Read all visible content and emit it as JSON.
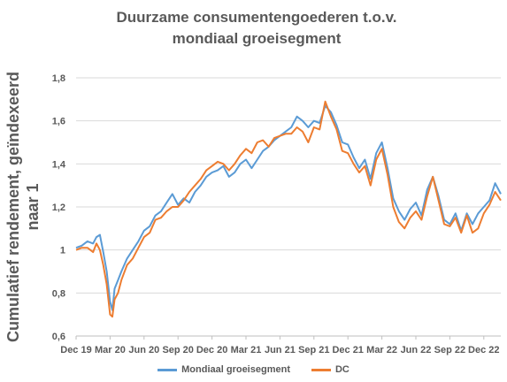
{
  "chart_data": {
    "type": "line",
    "title_line1": "Duurzame consumentengoederen t.o.v.",
    "title_line2": "mondiaal groeisegment",
    "ylabel": "Cumulatief rendement, geïndexeerd naar 1",
    "xlabel": "",
    "ylim": [
      0.6,
      1.8
    ],
    "y_ticks": [
      "0,6",
      "0,8",
      "1",
      "1,2",
      "1,4",
      "1,6",
      "1,8"
    ],
    "x_ticks": [
      "Dec 19",
      "Mar 20",
      "Jun 20",
      "Sep 20",
      "Dec 20",
      "Mar 21",
      "Jun 21",
      "Sep 21",
      "Dec 21",
      "Mar 22",
      "Jun 22",
      "Sep 22",
      "Dec 22"
    ],
    "x_range_months": [
      0,
      37.5
    ],
    "legend_position": "bottom",
    "grid": "horizontal",
    "series": [
      {
        "name": "Mondiaal groeisegment",
        "color": "#5B9BD5",
        "points": [
          [
            0,
            1.01
          ],
          [
            0.5,
            1.02
          ],
          [
            1,
            1.04
          ],
          [
            1.5,
            1.03
          ],
          [
            1.8,
            1.06
          ],
          [
            2.1,
            1.07
          ],
          [
            2.4,
            0.99
          ],
          [
            2.7,
            0.9
          ],
          [
            3.0,
            0.76
          ],
          [
            3.2,
            0.72
          ],
          [
            3.4,
            0.82
          ],
          [
            3.7,
            0.86
          ],
          [
            4.0,
            0.9
          ],
          [
            4.5,
            0.96
          ],
          [
            5,
            1.0
          ],
          [
            5.5,
            1.04
          ],
          [
            6,
            1.09
          ],
          [
            6.5,
            1.11
          ],
          [
            7,
            1.16
          ],
          [
            7.5,
            1.18
          ],
          [
            8,
            1.22
          ],
          [
            8.5,
            1.26
          ],
          [
            9,
            1.21
          ],
          [
            9.5,
            1.24
          ],
          [
            10,
            1.22
          ],
          [
            10.5,
            1.27
          ],
          [
            11,
            1.3
          ],
          [
            11.5,
            1.34
          ],
          [
            12,
            1.36
          ],
          [
            12.5,
            1.37
          ],
          [
            13,
            1.39
          ],
          [
            13.5,
            1.34
          ],
          [
            14,
            1.36
          ],
          [
            14.5,
            1.4
          ],
          [
            15,
            1.42
          ],
          [
            15.5,
            1.38
          ],
          [
            16,
            1.42
          ],
          [
            16.5,
            1.46
          ],
          [
            17,
            1.48
          ],
          [
            17.5,
            1.51
          ],
          [
            18,
            1.53
          ],
          [
            18.5,
            1.55
          ],
          [
            19,
            1.57
          ],
          [
            19.5,
            1.62
          ],
          [
            20,
            1.6
          ],
          [
            20.5,
            1.57
          ],
          [
            21,
            1.6
          ],
          [
            21.5,
            1.59
          ],
          [
            22,
            1.67
          ],
          [
            22.5,
            1.64
          ],
          [
            23,
            1.58
          ],
          [
            23.5,
            1.5
          ],
          [
            24,
            1.49
          ],
          [
            24.5,
            1.43
          ],
          [
            25,
            1.38
          ],
          [
            25.5,
            1.42
          ],
          [
            26,
            1.33
          ],
          [
            26.5,
            1.45
          ],
          [
            27,
            1.5
          ],
          [
            27.5,
            1.38
          ],
          [
            28,
            1.24
          ],
          [
            28.5,
            1.18
          ],
          [
            29,
            1.14
          ],
          [
            29.5,
            1.19
          ],
          [
            30,
            1.22
          ],
          [
            30.5,
            1.16
          ],
          [
            31,
            1.28
          ],
          [
            31.5,
            1.34
          ],
          [
            32,
            1.25
          ],
          [
            32.5,
            1.14
          ],
          [
            33,
            1.12
          ],
          [
            33.5,
            1.17
          ],
          [
            34,
            1.09
          ],
          [
            34.5,
            1.17
          ],
          [
            35,
            1.12
          ],
          [
            35.5,
            1.17
          ],
          [
            36,
            1.2
          ],
          [
            36.5,
            1.23
          ],
          [
            37,
            1.31
          ],
          [
            37.5,
            1.26
          ]
        ]
      },
      {
        "name": "DC",
        "color": "#ED7D31",
        "points": [
          [
            0,
            1.0
          ],
          [
            0.5,
            1.01
          ],
          [
            1,
            1.01
          ],
          [
            1.5,
            0.99
          ],
          [
            1.8,
            1.03
          ],
          [
            2.1,
            1.0
          ],
          [
            2.4,
            0.93
          ],
          [
            2.7,
            0.84
          ],
          [
            3.0,
            0.7
          ],
          [
            3.2,
            0.69
          ],
          [
            3.4,
            0.77
          ],
          [
            3.7,
            0.8
          ],
          [
            4.0,
            0.86
          ],
          [
            4.5,
            0.93
          ],
          [
            5,
            0.96
          ],
          [
            5.5,
            1.01
          ],
          [
            6,
            1.06
          ],
          [
            6.5,
            1.08
          ],
          [
            7,
            1.14
          ],
          [
            7.5,
            1.15
          ],
          [
            8,
            1.18
          ],
          [
            8.5,
            1.2
          ],
          [
            9,
            1.2
          ],
          [
            9.5,
            1.23
          ],
          [
            10,
            1.27
          ],
          [
            10.5,
            1.3
          ],
          [
            11,
            1.33
          ],
          [
            11.5,
            1.37
          ],
          [
            12,
            1.39
          ],
          [
            12.5,
            1.41
          ],
          [
            13,
            1.4
          ],
          [
            13.5,
            1.37
          ],
          [
            14,
            1.4
          ],
          [
            14.5,
            1.44
          ],
          [
            15,
            1.47
          ],
          [
            15.5,
            1.45
          ],
          [
            16,
            1.5
          ],
          [
            16.5,
            1.51
          ],
          [
            17,
            1.48
          ],
          [
            17.5,
            1.52
          ],
          [
            18,
            1.53
          ],
          [
            18.5,
            1.54
          ],
          [
            19,
            1.54
          ],
          [
            19.5,
            1.57
          ],
          [
            20,
            1.55
          ],
          [
            20.5,
            1.5
          ],
          [
            21,
            1.57
          ],
          [
            21.5,
            1.56
          ],
          [
            22,
            1.69
          ],
          [
            22.5,
            1.62
          ],
          [
            23,
            1.56
          ],
          [
            23.5,
            1.46
          ],
          [
            24,
            1.45
          ],
          [
            24.5,
            1.4
          ],
          [
            25,
            1.36
          ],
          [
            25.5,
            1.39
          ],
          [
            26,
            1.3
          ],
          [
            26.5,
            1.42
          ],
          [
            27,
            1.47
          ],
          [
            27.5,
            1.35
          ],
          [
            28,
            1.2
          ],
          [
            28.5,
            1.13
          ],
          [
            29,
            1.1
          ],
          [
            29.5,
            1.15
          ],
          [
            30,
            1.18
          ],
          [
            30.5,
            1.14
          ],
          [
            31,
            1.25
          ],
          [
            31.5,
            1.34
          ],
          [
            32,
            1.23
          ],
          [
            32.5,
            1.12
          ],
          [
            33,
            1.11
          ],
          [
            33.5,
            1.15
          ],
          [
            34,
            1.08
          ],
          [
            34.5,
            1.16
          ],
          [
            35,
            1.08
          ],
          [
            35.5,
            1.1
          ],
          [
            36,
            1.17
          ],
          [
            36.5,
            1.21
          ],
          [
            37,
            1.27
          ],
          [
            37.5,
            1.23
          ]
        ]
      }
    ]
  }
}
